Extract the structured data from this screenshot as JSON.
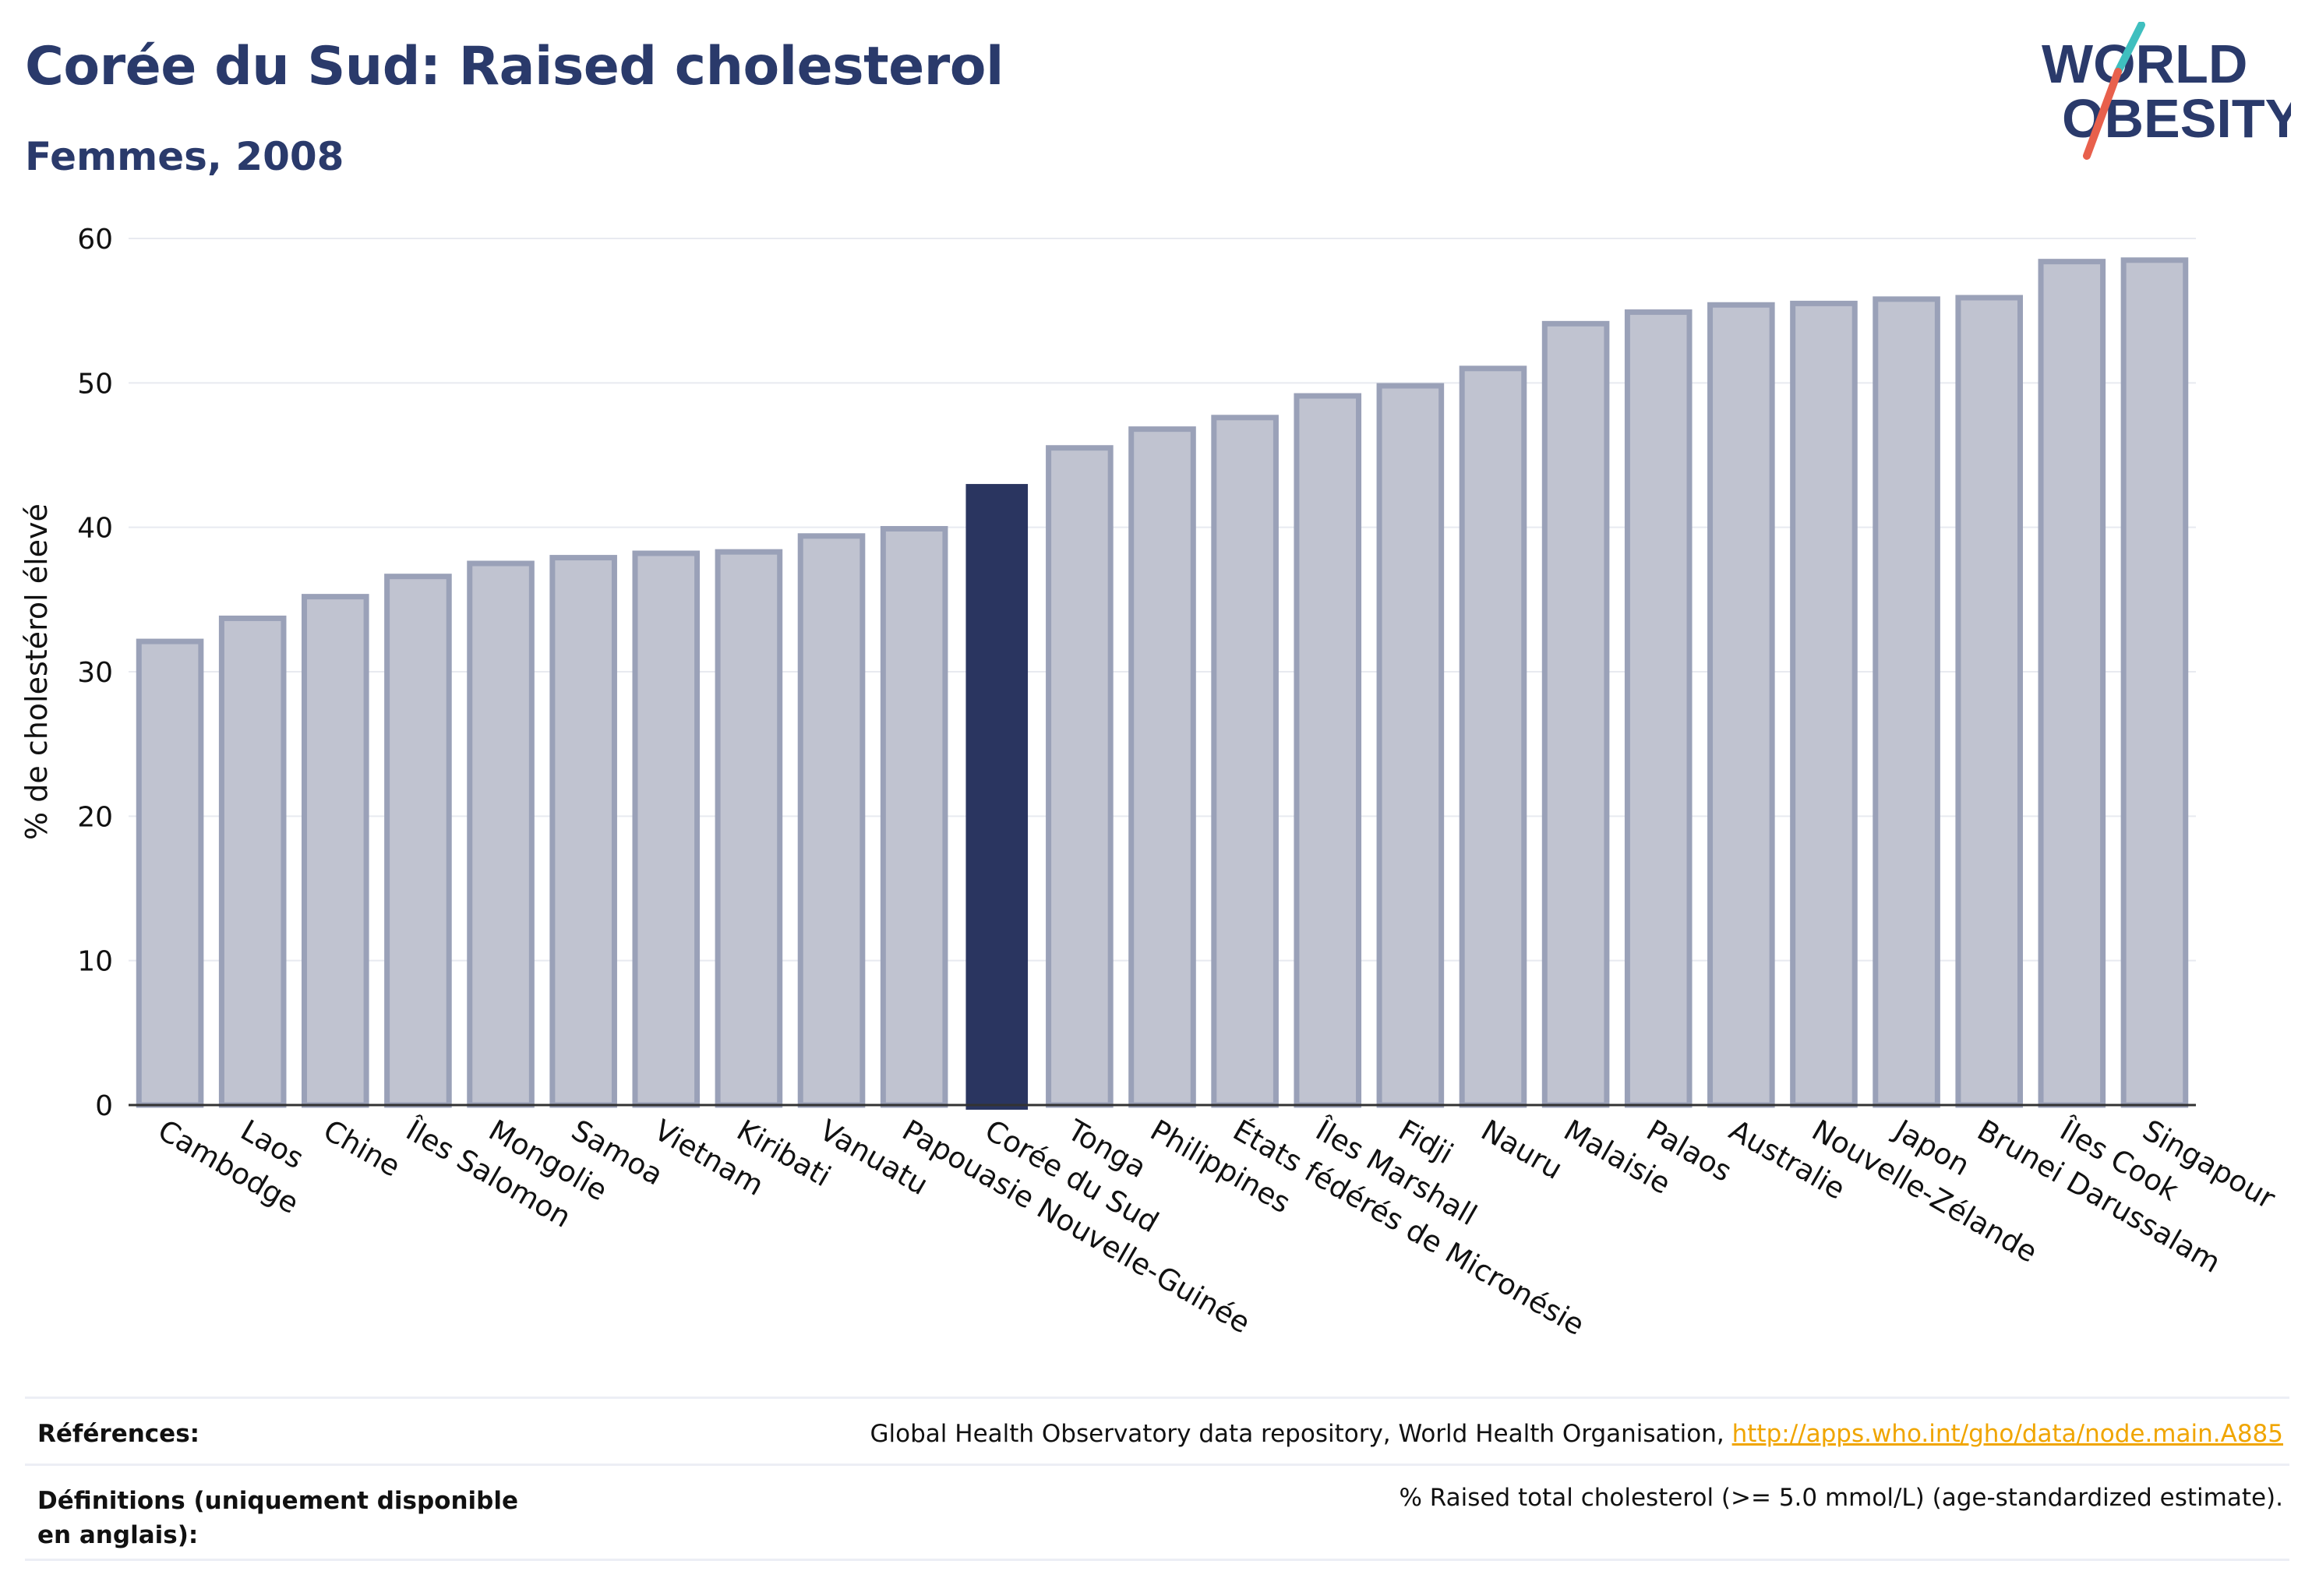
{
  "header": {
    "title": "Corée du Sud: Raised cholesterol",
    "subtitle": "Femmes, 2008"
  },
  "logo": {
    "line1": "WORLD",
    "line2": "OBESITY",
    "accent_colors": [
      "#3fbfbf",
      "#e8604c"
    ],
    "text_color": "#2a3a6b"
  },
  "chart_data": {
    "type": "bar",
    "title": "",
    "xlabel": "",
    "ylabel": "% de cholestérol élevé",
    "ylim": [
      0,
      60
    ],
    "yticks": [
      0,
      10,
      20,
      30,
      40,
      50,
      60
    ],
    "grid": true,
    "highlight": "Corée du Sud",
    "colors": {
      "bar": "#c0c3d0",
      "bar_border": "#9aa1b8",
      "highlight": "#2a3560"
    },
    "categories": [
      "Cambodge",
      "Laos",
      "Chine",
      "Îles Salomon",
      "Mongolie",
      "Samoa",
      "Vietnam",
      "Kiribati",
      "Vanuatu",
      "Papouasie Nouvelle-Guinée",
      "Corée du Sud",
      "Tonga",
      "Philippines",
      "États fédérés de Micronésie",
      "Îles Marshall",
      "Fidji",
      "Nauru",
      "Malaisie",
      "Palaos",
      "Australie",
      "Nouvelle-Zélande",
      "Japon",
      "Brunei Darussalam",
      "Îles Cook",
      "Singapour"
    ],
    "values": [
      32.1,
      33.7,
      35.2,
      36.6,
      37.5,
      37.9,
      38.2,
      38.3,
      39.4,
      39.9,
      43.0,
      45.5,
      46.8,
      47.6,
      49.1,
      49.8,
      51.0,
      54.1,
      54.9,
      55.4,
      55.5,
      55.8,
      55.9,
      58.4,
      58.5
    ]
  },
  "footer": {
    "references_label": "Références:",
    "references_text": "Global Health Observatory data repository, World Health Organisation, ",
    "references_link": "http://apps.who.int/gho/data/node.main.A885",
    "definitions_label": "Définitions (uniquement disponible en anglais):",
    "definitions_text": "% Raised total cholesterol (>= 5.0 mmol/L) (age-standardized estimate)."
  }
}
